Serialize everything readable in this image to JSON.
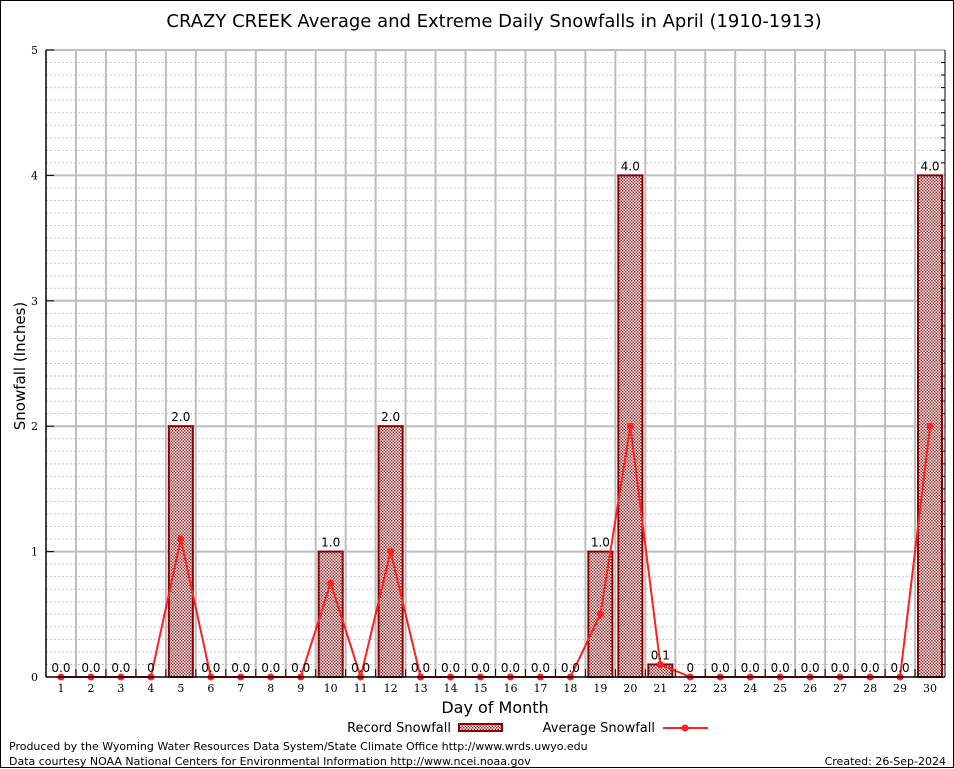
{
  "chart_data": {
    "type": "bar",
    "title": "CRAZY CREEK Average and Extreme Daily Snowfalls in April (1910-1913)",
    "xlabel": "Day of Month",
    "ylabel": "Snowfall (Inches)",
    "ylim": [
      0,
      5
    ],
    "yticks": [
      "0",
      "1",
      "2",
      "3",
      "4",
      "5"
    ],
    "grid": true,
    "categories": [
      "1",
      "2",
      "3",
      "4",
      "5",
      "6",
      "7",
      "8",
      "9",
      "10",
      "11",
      "12",
      "13",
      "14",
      "15",
      "16",
      "17",
      "18",
      "19",
      "20",
      "21",
      "22",
      "23",
      "24",
      "25",
      "26",
      "27",
      "28",
      "29",
      "30"
    ],
    "series": [
      {
        "name": "Record Snowfall",
        "type": "bar",
        "values": [
          0,
          0,
          0,
          0,
          2.0,
          0,
          0,
          0,
          0,
          1.0,
          0,
          2.0,
          0,
          0,
          0,
          0,
          0,
          0,
          1.0,
          4.0,
          0.1,
          0,
          0,
          0,
          0,
          0,
          0,
          0,
          0,
          4.0
        ],
        "labels": [
          "0.0",
          "0.0",
          "0.0",
          "0",
          "2.0",
          "0.0",
          "0.0",
          "0.0",
          "0.0",
          "1.0",
          "0.0",
          "2.0",
          "0.0",
          "0.0",
          "0.0",
          "0.0",
          "0.0",
          "0.0",
          "1.0",
          "4.0",
          "0.1",
          "0",
          "0.0",
          "0.0",
          "0.0",
          "0.0",
          "0.0",
          "0.0",
          "0.0",
          "4.0"
        ]
      },
      {
        "name": "Average Snowfall",
        "type": "line",
        "values": [
          0,
          0,
          0,
          0,
          1.1,
          0,
          0,
          0,
          0,
          0.75,
          0,
          1.0,
          0,
          0,
          0,
          0,
          0,
          0,
          0.5,
          2.0,
          0.1,
          0,
          0,
          0,
          0,
          0,
          0,
          0,
          0,
          2.0
        ]
      }
    ],
    "legend": "bottom-center",
    "colors": {
      "bar_fill": "#c0504d",
      "bar_edge": "#8b0000",
      "line": "#ff2020"
    }
  },
  "footer": {
    "produced": "Produced by the Wyoming Water Resources Data System/State Climate Office http://www.wrds.uwyo.edu",
    "courtesy": "Data courtesy NOAA National Centers for Environmental Information http://www.ncei.noaa.gov",
    "created": "Created: 26-Sep-2024"
  }
}
